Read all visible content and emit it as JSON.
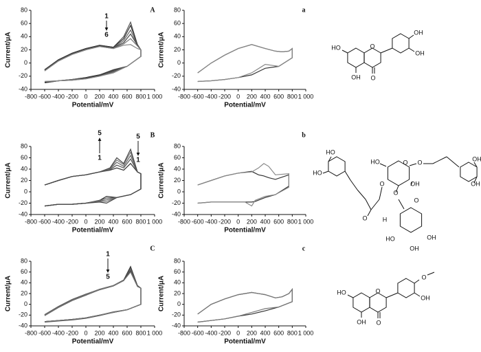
{
  "chart_data": [
    {
      "type": "line",
      "label": "A",
      "xlabel": "Potential/mV",
      "ylabel": "Current/μA",
      "xlim": [
        -800,
        1000
      ],
      "xticks": [
        -800,
        -600,
        -400,
        -200,
        0,
        200,
        400,
        600,
        800,
        {
          "value": 1000,
          "label": "1 000"
        }
      ],
      "ylim": [
        -40,
        80
      ],
      "yticks": [
        -40,
        -20,
        0,
        20,
        40,
        60,
        80
      ],
      "x": [
        -600,
        -400,
        -200,
        0,
        200,
        400,
        550,
        650,
        750,
        800,
        800,
        600,
        400,
        200,
        0,
        -200,
        -400,
        -600
      ],
      "series": [
        {
          "color": "#555",
          "values": [
            -10,
            5,
            15,
            22,
            27,
            24,
            40,
            62,
            28,
            20,
            10,
            -5,
            -10,
            -18,
            -22,
            -25,
            -27,
            -30
          ]
        },
        {
          "color": "#333",
          "values": [
            -10,
            5,
            15,
            22,
            27,
            24,
            37,
            57,
            28,
            20,
            10,
            -5,
            -11,
            -18,
            -22,
            -25,
            -27,
            -30
          ]
        },
        {
          "color": "#666",
          "values": [
            -11,
            4,
            14,
            21,
            26,
            23,
            34,
            50,
            27,
            20,
            10,
            -5,
            -12,
            -19,
            -23,
            -25,
            -27,
            -29
          ]
        },
        {
          "color": "#444",
          "values": [
            -11,
            4,
            14,
            21,
            26,
            23,
            31,
            44,
            27,
            20,
            10,
            -5,
            -13,
            -19,
            -23,
            -26,
            -27,
            -29
          ]
        },
        {
          "color": "#777",
          "values": [
            -12,
            3,
            13,
            20,
            25,
            22,
            29,
            37,
            26,
            20,
            10,
            -5,
            -14,
            -20,
            -24,
            -26,
            -27,
            -28
          ]
        },
        {
          "color": "#888",
          "values": [
            -12,
            3,
            13,
            20,
            25,
            22,
            27,
            28,
            22,
            20,
            10,
            -5,
            -15,
            -20,
            -24,
            -26,
            -27,
            -28
          ]
        }
      ],
      "annotations": [
        "1",
        "6"
      ]
    },
    {
      "type": "line",
      "label": "a",
      "xlabel": "Potential/mV",
      "ylabel": "Current/μA",
      "xlim": [
        -800,
        1000
      ],
      "xticks": [
        -800,
        -600,
        -400,
        -200,
        0,
        200,
        400,
        600,
        800,
        {
          "value": 1000,
          "label": "1 000"
        }
      ],
      "ylim": [
        -40,
        80
      ],
      "yticks": [
        -40,
        -20,
        0,
        20,
        40,
        60,
        80
      ],
      "x": [
        -600,
        -400,
        -200,
        0,
        200,
        400,
        550,
        650,
        750,
        800,
        800,
        600,
        400,
        200,
        0,
        -200,
        -400,
        -600
      ],
      "series": [
        {
          "color": "#333",
          "values": [
            -15,
            0,
            12,
            22,
            28,
            22,
            18,
            17,
            18,
            22,
            8,
            -5,
            -8,
            -18,
            -22,
            -25,
            -27,
            -28
          ]
        },
        {
          "color": "#888",
          "values": [
            -15,
            0,
            12,
            22,
            28,
            22,
            18,
            17,
            18,
            22,
            8,
            -5,
            -2,
            -15,
            -22,
            -25,
            -27,
            -28
          ]
        }
      ]
    },
    {
      "type": "line",
      "label": "B",
      "xlabel": "Potential/mV",
      "ylabel": "Current/μA",
      "xlim": [
        -800,
        1000
      ],
      "xticks": [
        -800,
        -600,
        -400,
        -200,
        0,
        200,
        400,
        600,
        800,
        {
          "value": 1000,
          "label": "1 000"
        }
      ],
      "ylim": [
        -40,
        80
      ],
      "yticks": [
        -40,
        -20,
        0,
        20,
        40,
        60,
        80
      ],
      "x": [
        -600,
        -400,
        -200,
        0,
        200,
        350,
        450,
        550,
        650,
        750,
        800,
        800,
        650,
        450,
        300,
        200,
        0,
        -200,
        -400,
        -600
      ],
      "series": [
        {
          "color": "#333",
          "values": [
            12,
            20,
            27,
            30,
            35,
            38,
            42,
            38,
            50,
            35,
            32,
            5,
            -5,
            -10,
            -8,
            -15,
            -20,
            -22,
            -22,
            -25
          ]
        },
        {
          "color": "#555",
          "values": [
            12,
            20,
            27,
            30,
            35,
            39,
            47,
            42,
            58,
            35,
            32,
            5,
            -5,
            -10,
            -11,
            -15,
            -20,
            -22,
            -22,
            -25
          ]
        },
        {
          "color": "#666",
          "values": [
            12,
            20,
            27,
            30,
            35,
            40,
            52,
            45,
            64,
            35,
            32,
            5,
            -5,
            -10,
            -14,
            -16,
            -20,
            -22,
            -22,
            -25
          ]
        },
        {
          "color": "#777",
          "values": [
            12,
            20,
            27,
            30,
            35,
            41,
            56,
            48,
            70,
            35,
            32,
            5,
            -5,
            -10,
            -17,
            -17,
            -20,
            -22,
            -22,
            -25
          ]
        },
        {
          "color": "#444",
          "values": [
            12,
            20,
            27,
            30,
            35,
            42,
            60,
            50,
            75,
            35,
            32,
            5,
            -5,
            -10,
            -20,
            -18,
            -20,
            -22,
            -22,
            -25
          ]
        }
      ],
      "annotations": [
        "5",
        "1",
        "5",
        "1"
      ]
    },
    {
      "type": "line",
      "label": "b",
      "xlabel": "Potential/mV",
      "ylabel": "Current/μA",
      "xlim": [
        -800,
        1000
      ],
      "xticks": [
        -800,
        -600,
        -400,
        -200,
        0,
        200,
        400,
        600,
        800,
        {
          "value": 1000,
          "label": "1 000"
        }
      ],
      "ylim": [
        -40,
        80
      ],
      "yticks": [
        -40,
        -20,
        0,
        20,
        40,
        60,
        80
      ],
      "x": [
        -600,
        -400,
        -200,
        0,
        200,
        300,
        380,
        450,
        550,
        750,
        750,
        550,
        400,
        250,
        200,
        100,
        0,
        -200,
        -400,
        -600
      ],
      "series": [
        {
          "color": "#333",
          "values": [
            12,
            20,
            28,
            33,
            36,
            30,
            28,
            25,
            22,
            30,
            10,
            -5,
            -10,
            -17,
            -18,
            -18,
            -18,
            -18,
            -18,
            -20
          ]
        },
        {
          "color": "#888",
          "values": [
            12,
            20,
            28,
            33,
            35,
            42,
            50,
            45,
            30,
            32,
            8,
            -5,
            -8,
            -15,
            -25,
            -18,
            -18,
            -18,
            -18,
            -20
          ]
        }
      ]
    },
    {
      "type": "line",
      "label": "C",
      "xlabel": "Potential/mV",
      "ylabel": "Current/μA",
      "xlim": [
        -800,
        1000
      ],
      "xticks": [
        -800,
        -600,
        -400,
        -200,
        0,
        200,
        400,
        600,
        800,
        {
          "value": 1000,
          "label": "1 000"
        }
      ],
      "ylim": [
        -40,
        80
      ],
      "yticks": [
        -40,
        -20,
        0,
        20,
        40,
        60,
        80
      ],
      "x": [
        -600,
        -400,
        -200,
        0,
        200,
        400,
        550,
        650,
        750,
        800,
        800,
        600,
        400,
        200,
        0,
        -200,
        -400,
        -600
      ],
      "series": [
        {
          "color": "#333",
          "values": [
            -20,
            -5,
            8,
            18,
            28,
            35,
            45,
            70,
            35,
            30,
            0,
            -10,
            -15,
            -20,
            -25,
            -28,
            -30,
            -32
          ]
        },
        {
          "color": "#555",
          "values": [
            -21,
            -6,
            7,
            17,
            27,
            34,
            44,
            67,
            35,
            30,
            0,
            -10,
            -15,
            -21,
            -26,
            -29,
            -31,
            -33
          ]
        },
        {
          "color": "#666",
          "values": [
            -20,
            -5,
            8,
            18,
            27,
            34,
            44,
            64,
            34,
            30,
            0,
            -10,
            -14,
            -20,
            -25,
            -28,
            -30,
            -32
          ]
        },
        {
          "color": "#444",
          "values": [
            -19,
            -4,
            9,
            19,
            28,
            35,
            45,
            62,
            34,
            30,
            0,
            -10,
            -15,
            -20,
            -25,
            -28,
            -30,
            -32
          ]
        },
        {
          "color": "#777",
          "values": [
            -20,
            -5,
            8,
            18,
            28,
            35,
            44,
            60,
            33,
            30,
            0,
            -10,
            -15,
            -20,
            -25,
            -28,
            -30,
            -32
          ]
        }
      ],
      "annotations": [
        "1",
        "5"
      ]
    },
    {
      "type": "line",
      "label": "c",
      "xlabel": "Potential/mV",
      "ylabel": "Current/μA",
      "xlim": [
        -800,
        1000
      ],
      "xticks": [
        -800,
        -600,
        -400,
        -200,
        0,
        200,
        400,
        600,
        800,
        {
          "value": 1000,
          "label": "1 000"
        }
      ],
      "ylim": [
        -40,
        80
      ],
      "yticks": [
        -40,
        -20,
        0,
        20,
        40,
        60,
        80
      ],
      "x": [
        -600,
        -400,
        -200,
        0,
        200,
        400,
        550,
        650,
        750,
        800,
        800,
        600,
        400,
        200,
        0,
        -200,
        -400,
        -600
      ],
      "series": [
        {
          "color": "#333",
          "values": [
            -18,
            0,
            10,
            18,
            22,
            18,
            12,
            14,
            20,
            28,
            5,
            -5,
            -12,
            -18,
            -22,
            -27,
            -30,
            -33
          ]
        },
        {
          "color": "#777",
          "values": [
            -18,
            0,
            10,
            18,
            22,
            18,
            12,
            14,
            20,
            28,
            5,
            -5,
            -8,
            -15,
            -22,
            -27,
            -30,
            -33
          ]
        }
      ]
    }
  ],
  "structures": [
    {
      "labels": [
        "HO",
        "OH",
        "O",
        "O",
        "OH",
        "OH"
      ]
    },
    {
      "labels": [
        "HO",
        "HO",
        "O",
        "O",
        "HO",
        "O",
        "O",
        "OH",
        "O",
        "OH",
        "OH",
        "O",
        "H",
        "HO",
        "OH",
        "OH"
      ]
    },
    {
      "labels": [
        "HO",
        "OH",
        "O",
        "O",
        "O",
        "OH"
      ]
    }
  ]
}
